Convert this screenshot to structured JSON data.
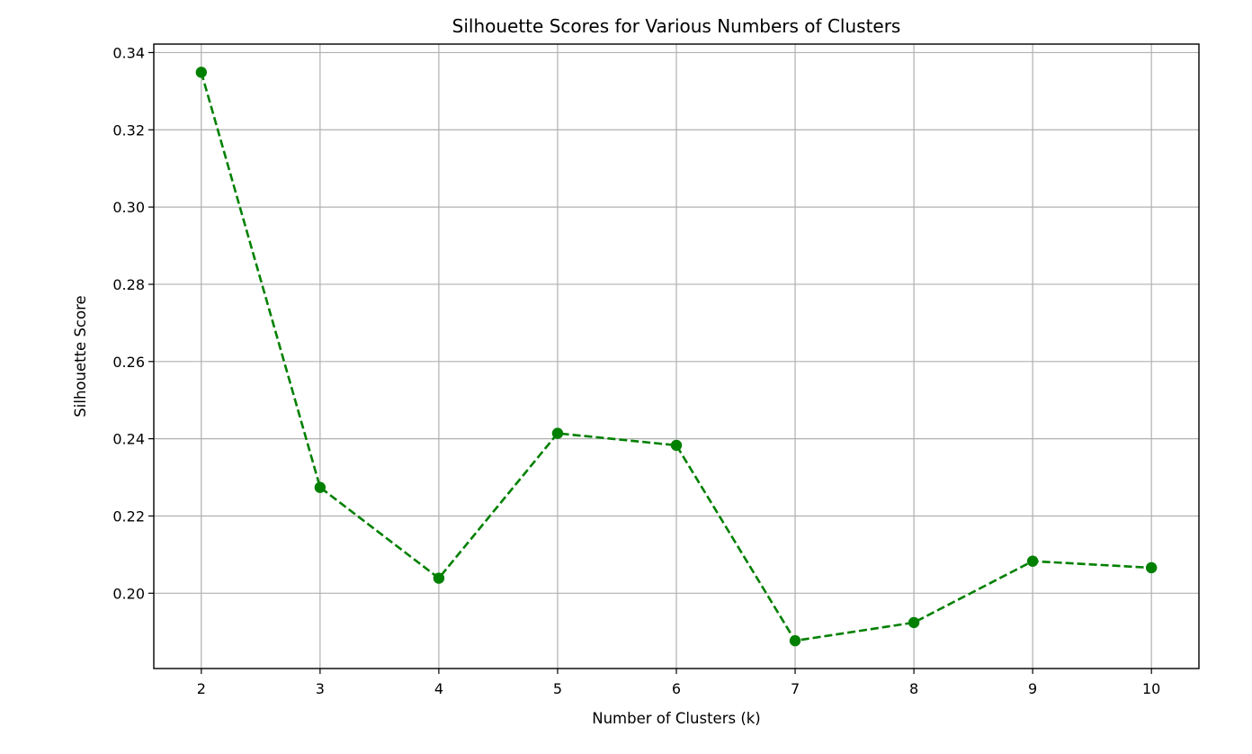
{
  "chart_data": {
    "type": "line",
    "title": "Silhouette Scores for Various Numbers of Clusters",
    "xlabel": "Number of Clusters (k)",
    "ylabel": "Silhouette Score",
    "x": [
      2,
      3,
      4,
      5,
      6,
      7,
      8,
      9,
      10
    ],
    "series": [
      {
        "values": [
          0.3349,
          0.2274,
          0.2039,
          0.2414,
          0.2383,
          0.1877,
          0.1924,
          0.2083,
          0.2066
        ],
        "color": "#008000",
        "line_style": "dashed",
        "marker": "circle"
      }
    ],
    "xticks": [
      "2",
      "3",
      "4",
      "5",
      "6",
      "7",
      "8",
      "9",
      "10"
    ],
    "yticks": [
      "0.20",
      "0.22",
      "0.24",
      "0.26",
      "0.28",
      "0.30",
      "0.32",
      "0.34"
    ],
    "xlim": [
      1.6,
      10.4
    ],
    "ylim": [
      0.1805,
      0.3422
    ],
    "grid": true
  }
}
